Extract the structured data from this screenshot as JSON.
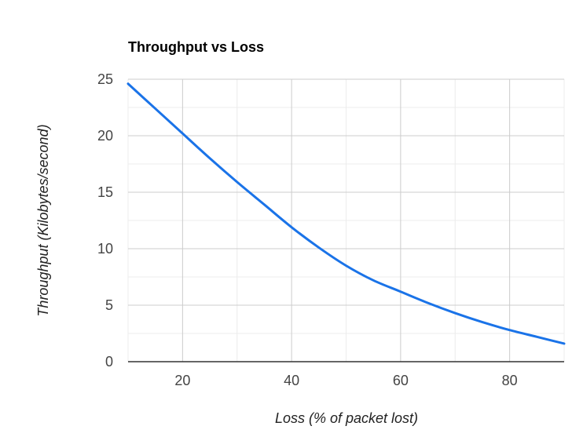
{
  "chart_data": {
    "type": "line",
    "title": "Throughput vs Loss",
    "xlabel": "Loss (% of packet lost)",
    "ylabel": "Throughput  (Kilobytes/second)",
    "xlim": [
      10,
      90
    ],
    "ylim": [
      0,
      25
    ],
    "x_ticks": [
      20,
      40,
      60,
      80
    ],
    "y_ticks": [
      0,
      5,
      10,
      15,
      20,
      25
    ],
    "grid": true,
    "legend": "none",
    "series": [
      {
        "color": "#1a73e8",
        "x": [
          10,
          15,
          20,
          25,
          30,
          35,
          40,
          45,
          50,
          55,
          60,
          65,
          70,
          75,
          80,
          85,
          90
        ],
        "y": [
          24.6,
          22.4,
          20.2,
          18.0,
          15.9,
          13.9,
          11.9,
          10.1,
          8.5,
          7.2,
          6.2,
          5.2,
          4.3,
          3.5,
          2.8,
          2.2,
          1.6
        ]
      }
    ]
  }
}
